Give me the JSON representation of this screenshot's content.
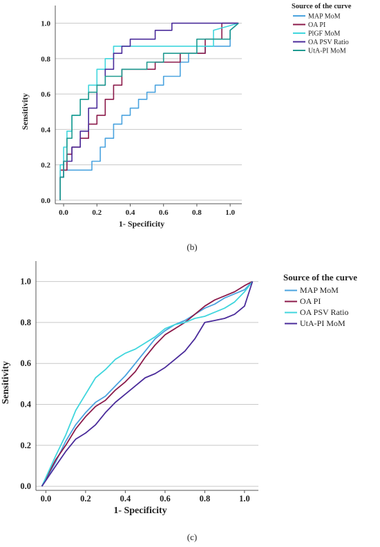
{
  "chart_data": [
    {
      "type": "line",
      "panel_label": "(b)",
      "xlabel": "1- Specificity",
      "ylabel": "Sensitivity",
      "xticks": [
        "0.0",
        "0.2",
        "0.4",
        "0.6",
        "0.8",
        "1.0"
      ],
      "yticks": [
        "0.0",
        "0.2",
        "0.4",
        "0.6",
        "0.8",
        "1.0"
      ],
      "xlim": [
        -0.05,
        1.07
      ],
      "ylim": [
        -0.02,
        1.1
      ],
      "grid": "horizontal",
      "legend_title": "Source of the curve",
      "legend_position": "right",
      "series": [
        {
          "name": "MAP MoM",
          "color": "#4aa3df",
          "x": [
            -0.02,
            -0.02,
            0.0,
            0.0,
            0.17,
            0.17,
            0.22,
            0.22,
            0.25,
            0.25,
            0.3,
            0.3,
            0.35,
            0.35,
            0.4,
            0.4,
            0.45,
            0.45,
            0.5,
            0.5,
            0.55,
            0.55,
            0.6,
            0.6,
            0.7,
            0.7,
            0.75,
            0.75,
            0.85,
            0.85,
            1.0,
            1.0,
            1.05
          ],
          "y": [
            0.0,
            0.13,
            0.13,
            0.17,
            0.17,
            0.22,
            0.22,
            0.3,
            0.3,
            0.35,
            0.35,
            0.43,
            0.43,
            0.48,
            0.48,
            0.52,
            0.52,
            0.57,
            0.57,
            0.61,
            0.61,
            0.65,
            0.65,
            0.7,
            0.7,
            0.78,
            0.78,
            0.83,
            0.83,
            0.87,
            0.87,
            0.96,
            1.0
          ]
        },
        {
          "name": "OA PI",
          "color": "#8b1a4a",
          "x": [
            -0.02,
            -0.02,
            0.02,
            0.02,
            0.05,
            0.05,
            0.1,
            0.1,
            0.15,
            0.15,
            0.2,
            0.2,
            0.25,
            0.25,
            0.3,
            0.3,
            0.35,
            0.35,
            0.55,
            0.55,
            0.7,
            0.7,
            0.85,
            0.85,
            0.95,
            0.95,
            1.05
          ],
          "y": [
            0.0,
            0.17,
            0.17,
            0.26,
            0.26,
            0.3,
            0.3,
            0.35,
            0.35,
            0.43,
            0.43,
            0.48,
            0.48,
            0.57,
            0.57,
            0.65,
            0.65,
            0.74,
            0.74,
            0.78,
            0.78,
            0.83,
            0.83,
            0.91,
            0.91,
            1.0,
            1.0
          ]
        },
        {
          "name": "PlGF MoM",
          "color": "#3fd6dd",
          "x": [
            -0.02,
            -0.02,
            0.0,
            0.0,
            0.02,
            0.02,
            0.05,
            0.05,
            0.1,
            0.1,
            0.15,
            0.15,
            0.2,
            0.2,
            0.25,
            0.25,
            0.3,
            0.3,
            0.5,
            0.5,
            0.7,
            0.7,
            0.9,
            0.9,
            1.05
          ],
          "y": [
            0.0,
            0.2,
            0.2,
            0.3,
            0.3,
            0.39,
            0.39,
            0.48,
            0.48,
            0.57,
            0.57,
            0.65,
            0.65,
            0.74,
            0.74,
            0.8,
            0.8,
            0.87,
            0.87,
            0.87,
            0.87,
            0.87,
            0.87,
            0.96,
            1.0
          ]
        },
        {
          "name": "OA PSV Ratio",
          "color": "#4a2b9a",
          "x": [
            -0.02,
            -0.02,
            0.0,
            0.0,
            0.05,
            0.05,
            0.1,
            0.1,
            0.15,
            0.15,
            0.2,
            0.2,
            0.25,
            0.25,
            0.3,
            0.3,
            0.35,
            0.35,
            0.4,
            0.4,
            0.55,
            0.55,
            0.65,
            0.65,
            0.95,
            0.95,
            1.05
          ],
          "y": [
            0.0,
            0.13,
            0.13,
            0.22,
            0.22,
            0.3,
            0.3,
            0.39,
            0.39,
            0.52,
            0.52,
            0.65,
            0.65,
            0.74,
            0.74,
            0.83,
            0.83,
            0.87,
            0.87,
            0.91,
            0.91,
            0.96,
            0.96,
            1.0,
            1.0,
            1.0,
            1.0
          ]
        },
        {
          "name": "UtA-PI MoM",
          "color": "#1f9a90",
          "x": [
            -0.02,
            -0.02,
            0.0,
            0.0,
            0.02,
            0.02,
            0.05,
            0.05,
            0.1,
            0.1,
            0.15,
            0.15,
            0.2,
            0.2,
            0.25,
            0.25,
            0.35,
            0.35,
            0.5,
            0.5,
            0.6,
            0.6,
            0.8,
            0.8,
            1.0,
            1.0,
            1.05
          ],
          "y": [
            0.0,
            0.13,
            0.13,
            0.22,
            0.22,
            0.35,
            0.35,
            0.48,
            0.48,
            0.57,
            0.57,
            0.61,
            0.61,
            0.65,
            0.65,
            0.7,
            0.7,
            0.74,
            0.74,
            0.78,
            0.78,
            0.83,
            0.83,
            0.91,
            0.91,
            0.96,
            1.0
          ]
        }
      ]
    },
    {
      "type": "line",
      "panel_label": "(c)",
      "xlabel": "1- Specificity",
      "ylabel": "Sensitivity",
      "xticks": [
        "0.0",
        "0.2",
        "0.4",
        "0.6",
        "0.8",
        "1.0"
      ],
      "yticks": [
        "0.0",
        "0.2",
        "0.4",
        "0.6",
        "0.8",
        "1.0"
      ],
      "xlim": [
        -0.05,
        1.07
      ],
      "ylim": [
        -0.02,
        1.1
      ],
      "grid": "horizontal",
      "legend_title": "Source of the curve",
      "legend_position": "right",
      "series": [
        {
          "name": "MAP MoM",
          "color": "#4aa3df",
          "x": [
            -0.02,
            0.05,
            0.1,
            0.15,
            0.2,
            0.25,
            0.3,
            0.35,
            0.4,
            0.45,
            0.5,
            0.55,
            0.6,
            0.65,
            0.7,
            0.75,
            0.8,
            0.85,
            0.9,
            0.95,
            1.0,
            1.04
          ],
          "y": [
            0.0,
            0.12,
            0.22,
            0.3,
            0.36,
            0.41,
            0.44,
            0.49,
            0.54,
            0.6,
            0.66,
            0.72,
            0.76,
            0.79,
            0.81,
            0.84,
            0.87,
            0.89,
            0.92,
            0.94,
            0.96,
            1.0
          ]
        },
        {
          "name": "OA PI",
          "color": "#8b1a4a",
          "x": [
            -0.02,
            0.05,
            0.1,
            0.15,
            0.2,
            0.25,
            0.3,
            0.35,
            0.4,
            0.45,
            0.5,
            0.55,
            0.6,
            0.65,
            0.7,
            0.75,
            0.8,
            0.85,
            0.9,
            0.95,
            1.0,
            1.04
          ],
          "y": [
            0.0,
            0.13,
            0.2,
            0.28,
            0.34,
            0.39,
            0.42,
            0.47,
            0.51,
            0.56,
            0.63,
            0.69,
            0.74,
            0.77,
            0.8,
            0.84,
            0.88,
            0.91,
            0.93,
            0.95,
            0.98,
            1.0
          ]
        },
        {
          "name": "OA PSV Ratio",
          "color": "#3fd6dd",
          "x": [
            -0.02,
            0.05,
            0.1,
            0.15,
            0.2,
            0.25,
            0.3,
            0.35,
            0.4,
            0.45,
            0.5,
            0.55,
            0.6,
            0.65,
            0.7,
            0.75,
            0.8,
            0.85,
            0.9,
            0.95,
            1.0,
            1.04
          ],
          "y": [
            0.0,
            0.15,
            0.25,
            0.37,
            0.45,
            0.53,
            0.57,
            0.62,
            0.65,
            0.67,
            0.7,
            0.73,
            0.77,
            0.79,
            0.8,
            0.82,
            0.83,
            0.85,
            0.87,
            0.9,
            0.95,
            1.0
          ]
        },
        {
          "name": "UtA-PI MoM",
          "color": "#4a2b9a",
          "x": [
            -0.02,
            0.05,
            0.1,
            0.15,
            0.2,
            0.25,
            0.3,
            0.35,
            0.4,
            0.45,
            0.5,
            0.55,
            0.6,
            0.65,
            0.7,
            0.75,
            0.8,
            0.85,
            0.9,
            0.95,
            1.0,
            1.04
          ],
          "y": [
            0.0,
            0.1,
            0.17,
            0.23,
            0.26,
            0.3,
            0.36,
            0.41,
            0.45,
            0.49,
            0.53,
            0.55,
            0.58,
            0.62,
            0.66,
            0.72,
            0.8,
            0.81,
            0.82,
            0.84,
            0.88,
            1.0
          ]
        }
      ]
    }
  ]
}
